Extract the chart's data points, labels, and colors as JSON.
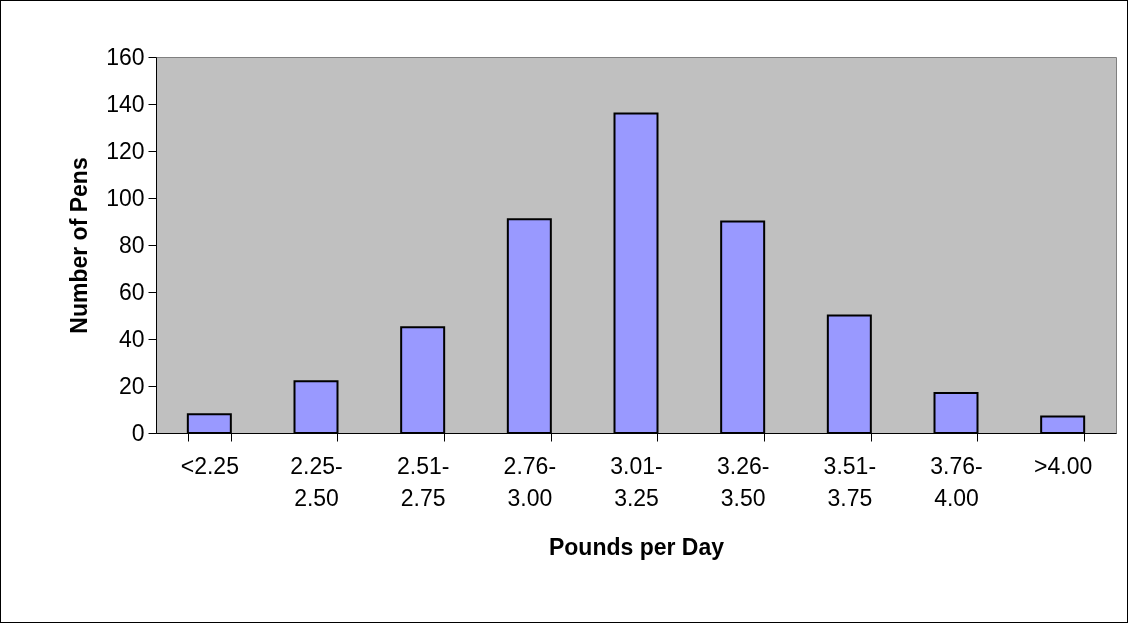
{
  "chart_data": {
    "type": "bar",
    "xlabel": "Pounds per Day",
    "ylabel": "Number of Pens",
    "categories": [
      "<2.25",
      "2.25-2.50",
      "2.51-2.75",
      "2.76-3.00",
      "3.01-3.25",
      "3.26-3.50",
      "3.51-3.75",
      "3.76-4.00",
      ">4.00"
    ],
    "values": [
      8,
      22,
      45,
      91,
      136,
      90,
      50,
      17,
      7
    ],
    "color": "#9999ff",
    "ylim": [
      0,
      160
    ],
    "yticks": [
      0,
      20,
      40,
      60,
      80,
      100,
      120,
      140,
      160
    ],
    "grid": false
  }
}
